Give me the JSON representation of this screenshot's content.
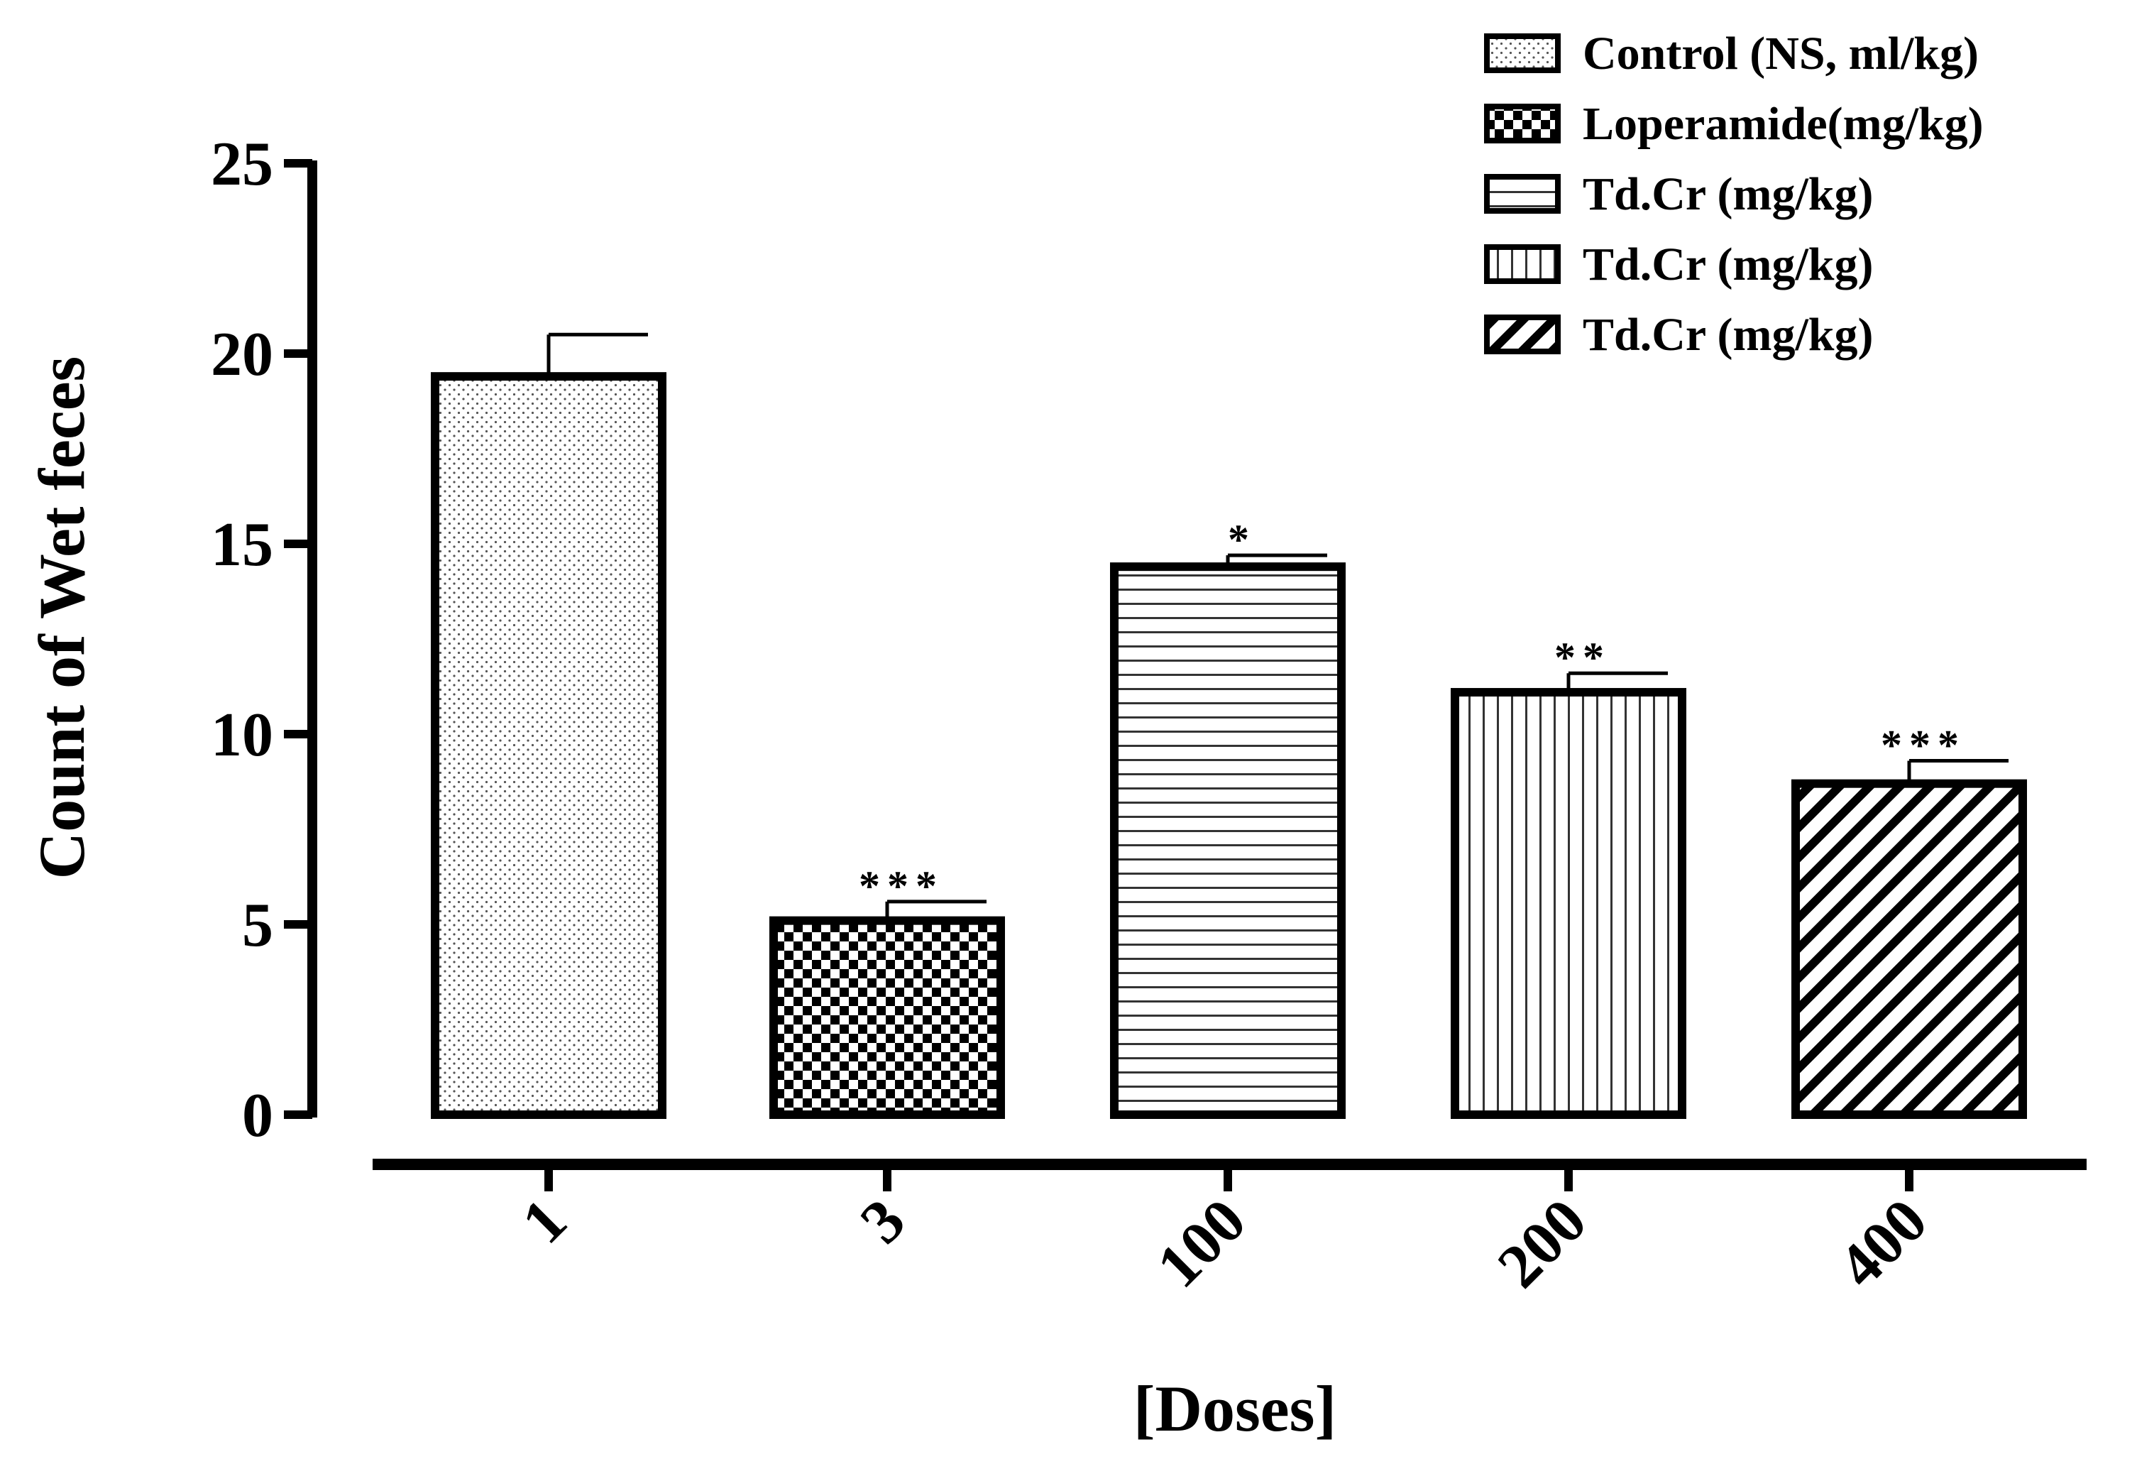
{
  "chart_data": {
    "type": "bar",
    "title": "",
    "xlabel": "[Doses]",
    "ylabel": "Count of Wet feces",
    "ylim": [
      0,
      25
    ],
    "yticks": [
      0,
      5,
      10,
      15,
      20,
      25
    ],
    "categories": [
      "1",
      "3",
      "100",
      "200",
      "400"
    ],
    "values": [
      19.4,
      5.1,
      14.4,
      11.1,
      8.7
    ],
    "errors": [
      1.1,
      0.5,
      0.3,
      0.5,
      0.6
    ],
    "significance": [
      "",
      "***",
      "*",
      "**",
      "***"
    ],
    "legend": [
      {
        "label": "Control (NS, ml/kg)",
        "pattern": "dots"
      },
      {
        "label": "Loperamide(mg/kg)",
        "pattern": "checker"
      },
      {
        "label": "Td.Cr (mg/kg)",
        "pattern": "hlines"
      },
      {
        "label": "Td.Cr (mg/kg)",
        "pattern": "vlines"
      },
      {
        "label": "Td.Cr (mg/kg)",
        "pattern": "diagonal"
      }
    ],
    "legend_position": "top-right",
    "grid": false
  }
}
